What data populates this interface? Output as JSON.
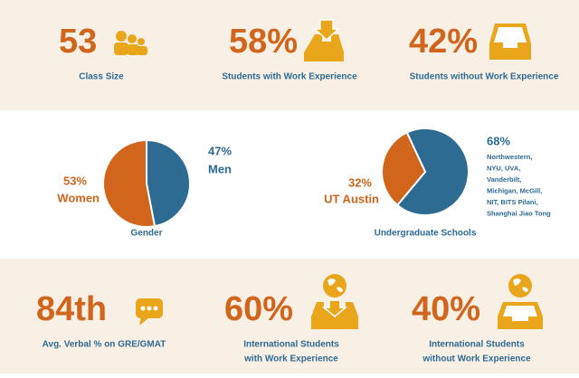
{
  "top_stats": [
    {
      "value": "53",
      "label": "Class Size"
    },
    {
      "value": "58%",
      "label": "Students with Work Experience"
    },
    {
      "value": "42%",
      "label": "Students without Work Experience"
    }
  ],
  "pies": [
    {
      "title": "Gender",
      "slices": [
        {
          "value": 47,
          "label": "47%",
          "name": "Men",
          "color": "#2e6b93"
        },
        {
          "value": 53,
          "label": "53%",
          "name": "Women",
          "color": "#d2651c"
        }
      ]
    },
    {
      "title": "Undergraduate Schools",
      "slices": [
        {
          "value": 68,
          "label": "68%",
          "name_lines": [
            "Northwestern,",
            "NYU, UVA,",
            "Vanderbilt,",
            "Michigan, McGill,",
            "NIT, BITS Pilani,",
            "Shanghai Jiao Tong"
          ],
          "color": "#2e6b93"
        },
        {
          "value": 32,
          "label": "32%",
          "name": "UT Austin",
          "color": "#d2651c"
        }
      ]
    }
  ],
  "bottom_stats": [
    {
      "value": "84th",
      "label_lines": [
        "Avg. Verbal % on GRE/GMAT"
      ]
    },
    {
      "value": "60%",
      "label_lines": [
        "International Students",
        "with Work Experience"
      ]
    },
    {
      "value": "40%",
      "label_lines": [
        "International Students",
        "without Work Experience"
      ]
    }
  ]
}
